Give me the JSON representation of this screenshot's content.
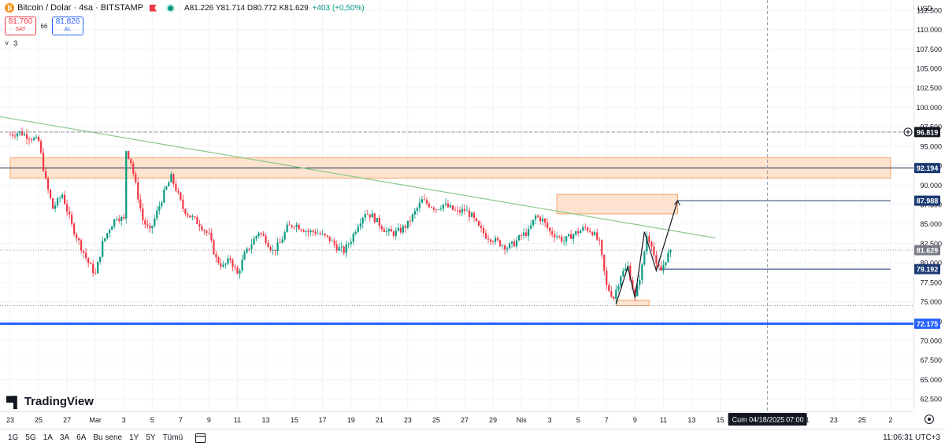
{
  "header": {
    "symbol_title": "Bitcoin / Dolar · 4sa · BITSTAMP",
    "ohlc": {
      "o_label": "A",
      "o": "81.226",
      "h_label": "Y",
      "h": "81.714",
      "l_label": "D",
      "l": "80.772",
      "c_label": "K",
      "c": "81.629",
      "change": "+403 (+0,50%)"
    }
  },
  "trade": {
    "sell_price": "81.760",
    "sell_label": "SAT",
    "spread": "66",
    "buy_price": "81.826",
    "buy_label": "AL"
  },
  "indicator_toggle": {
    "chevron": "˅",
    "count": "3"
  },
  "currency": "USD",
  "logo_text": "TradingView",
  "time_ranges": [
    "1G",
    "5G",
    "1A",
    "3A",
    "6A",
    "Bu sene",
    "1Y",
    "5Y",
    "Tümü"
  ],
  "clock": "11:06:31 UTC+3",
  "colors": {
    "up": "#089981",
    "down": "#f23645",
    "accent": "#2962ff",
    "zone_fill": "#fcd9c0",
    "zone_stroke": "#f4a46a",
    "trend": "#89c98b",
    "label_bg": "#1b3a73"
  },
  "chart_data": {
    "type": "candlestick",
    "y_ticks": [
      "112.500",
      "110.000",
      "107.500",
      "105.000",
      "102.500",
      "100.000",
      "97.500",
      "95.000",
      "92.500",
      "90.000",
      "87.500",
      "85.000",
      "82.500",
      "80.000",
      "77.500",
      "75.000",
      "72.500",
      "70.000",
      "67.500",
      "65.000",
      "62.500"
    ],
    "ylim": [
      61000,
      113800
    ],
    "x_ticks": [
      {
        "label": "23",
        "t": 0
      },
      {
        "label": "25",
        "t": 12
      },
      {
        "label": "27",
        "t": 24
      },
      {
        "label": "Mar",
        "t": 36
      },
      {
        "label": "3",
        "t": 48
      },
      {
        "label": "5",
        "t": 60
      },
      {
        "label": "7",
        "t": 72
      },
      {
        "label": "9",
        "t": 84
      },
      {
        "label": "11",
        "t": 96
      },
      {
        "label": "13",
        "t": 108
      },
      {
        "label": "15",
        "t": 120
      },
      {
        "label": "17",
        "t": 132
      },
      {
        "label": "19",
        "t": 144
      },
      {
        "label": "21",
        "t": 156
      },
      {
        "label": "23",
        "t": 168
      },
      {
        "label": "25",
        "t": 180
      },
      {
        "label": "27",
        "t": 192
      },
      {
        "label": "29",
        "t": 204
      },
      {
        "label": "Nis",
        "t": 216
      },
      {
        "label": "3",
        "t": 228
      },
      {
        "label": "5",
        "t": 240
      },
      {
        "label": "7",
        "t": 252
      },
      {
        "label": "9",
        "t": 264
      },
      {
        "label": "11",
        "t": 276
      },
      {
        "label": "13",
        "t": 288
      },
      {
        "label": "15",
        "t": 300
      },
      {
        "label": "21",
        "t": 336
      },
      {
        "label": "23",
        "t": 348
      },
      {
        "label": "25",
        "t": 360
      },
      {
        "label": "2",
        "t": 372
      }
    ],
    "last_candle_t": 279,
    "close_path": [
      [
        0,
        96500
      ],
      [
        4,
        96800
      ],
      [
        8,
        96200
      ],
      [
        12,
        95600
      ],
      [
        15,
        90500
      ],
      [
        18,
        87000
      ],
      [
        22,
        88800
      ],
      [
        26,
        84800
      ],
      [
        30,
        82000
      ],
      [
        33,
        80000
      ],
      [
        36,
        78500
      ],
      [
        39,
        82500
      ],
      [
        42,
        84500
      ],
      [
        45,
        86000
      ],
      [
        48,
        85500
      ],
      [
        49,
        94500
      ],
      [
        51,
        93000
      ],
      [
        53,
        90000
      ],
      [
        56,
        85500
      ],
      [
        59,
        84000
      ],
      [
        62,
        86500
      ],
      [
        65,
        89000
      ],
      [
        68,
        91000
      ],
      [
        70,
        89500
      ],
      [
        73,
        87000
      ],
      [
        76,
        86000
      ],
      [
        80,
        85000
      ],
      [
        84,
        83500
      ],
      [
        87,
        80500
      ],
      [
        90,
        79500
      ],
      [
        93,
        80500
      ],
      [
        96,
        78500
      ],
      [
        99,
        81000
      ],
      [
        102,
        82500
      ],
      [
        105,
        84000
      ],
      [
        108,
        83000
      ],
      [
        111,
        81500
      ],
      [
        114,
        82500
      ],
      [
        117,
        84500
      ],
      [
        120,
        85000
      ],
      [
        123,
        84500
      ],
      [
        126,
        84000
      ],
      [
        129,
        84000
      ],
      [
        132,
        83500
      ],
      [
        135,
        83000
      ],
      [
        138,
        82000
      ],
      [
        141,
        81500
      ],
      [
        144,
        83000
      ],
      [
        147,
        85000
      ],
      [
        150,
        86500
      ],
      [
        153,
        86000
      ],
      [
        156,
        85000
      ],
      [
        159,
        84000
      ],
      [
        162,
        83800
      ],
      [
        165,
        84200
      ],
      [
        168,
        85000
      ],
      [
        171,
        86500
      ],
      [
        174,
        88000
      ],
      [
        177,
        87500
      ],
      [
        180,
        87000
      ],
      [
        183,
        87500
      ],
      [
        186,
        87000
      ],
      [
        189,
        86500
      ],
      [
        192,
        86800
      ],
      [
        195,
        86000
      ],
      [
        198,
        84500
      ],
      [
        201,
        83500
      ],
      [
        204,
        83000
      ],
      [
        207,
        82500
      ],
      [
        210,
        82000
      ],
      [
        213,
        82500
      ],
      [
        216,
        83500
      ],
      [
        219,
        84000
      ],
      [
        222,
        86000
      ],
      [
        225,
        85500
      ],
      [
        228,
        84000
      ],
      [
        231,
        83500
      ],
      [
        234,
        82800
      ],
      [
        237,
        83500
      ],
      [
        240,
        84000
      ],
      [
        243,
        84500
      ],
      [
        246,
        84000
      ],
      [
        249,
        82500
      ],
      [
        252,
        77000
      ],
      [
        255,
        75500
      ],
      [
        258,
        78500
      ],
      [
        261,
        79500
      ],
      [
        264,
        75500
      ],
      [
        267,
        79500
      ],
      [
        269,
        83500
      ],
      [
        271,
        82500
      ],
      [
        273,
        79500
      ],
      [
        275,
        79000
      ],
      [
        277,
        80500
      ],
      [
        279,
        81629
      ]
    ],
    "last_price": 81629,
    "price_labels": [
      {
        "value": 96819,
        "text": "96.819",
        "style": "crosshair"
      },
      {
        "value": 92194,
        "text": "92.194",
        "style": "level"
      },
      {
        "value": 87988,
        "text": "87.988",
        "style": "level"
      },
      {
        "value": 81629,
        "text": "81.629",
        "style": "last"
      },
      {
        "value": 79192,
        "text": "79.192",
        "style": "level"
      },
      {
        "value": 72175,
        "text": "72.175",
        "style": "support"
      }
    ],
    "horizontal_lines": [
      {
        "value": 92194,
        "style": "thin-dark"
      },
      {
        "value": 72175,
        "style": "thick-blue"
      },
      {
        "value": 74500,
        "style": "dotted"
      },
      {
        "value": 96819,
        "style": "dotted"
      },
      {
        "value": 81629,
        "style": "dotted"
      }
    ],
    "zones": [
      {
        "t0": 0,
        "t1": 372,
        "v0": 90900,
        "v1": 93500
      },
      {
        "t0": 231,
        "t1": 282,
        "v0": 86300,
        "v1": 88800
      },
      {
        "t0": 256,
        "t1": 270,
        "v0": 74500,
        "v1": 75200
      }
    ],
    "trendline": {
      "t0": 0,
      "v0": 98800,
      "t1": 298,
      "v1": 83200
    },
    "pattern_path": [
      [
        256,
        74700
      ],
      [
        261,
        79500
      ],
      [
        264,
        75500
      ],
      [
        268,
        84000
      ],
      [
        273,
        79000
      ],
      [
        282,
        88000
      ]
    ],
    "projection_segments": [
      {
        "t0": 282,
        "v0": 87988,
        "t1": 372,
        "v1": 87988
      },
      {
        "t0": 274,
        "v0": 79192,
        "t1": 372,
        "v1": 79192
      }
    ],
    "crosshair_t": 320,
    "crosshair_label": "Cum 04/18/2025",
    "crosshair_time": "07:00"
  }
}
